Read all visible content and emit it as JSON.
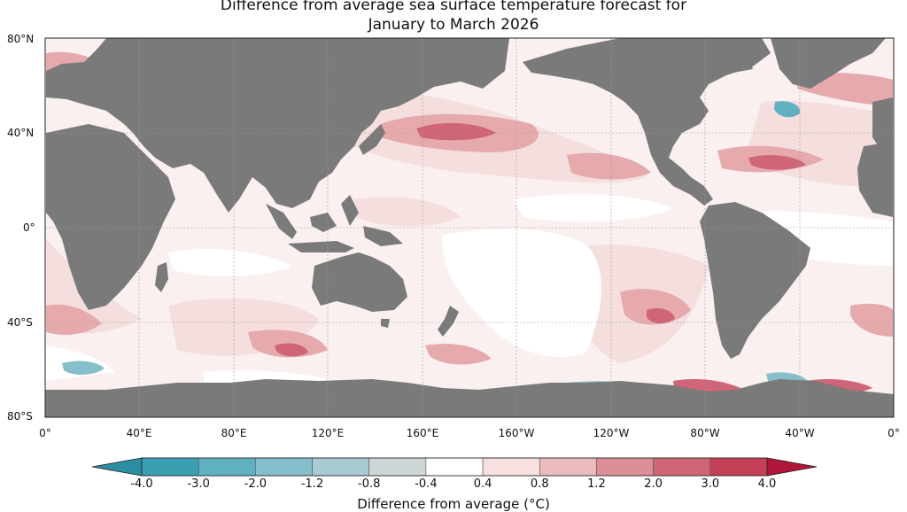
{
  "title": {
    "line1": "Difference from average sea surface temperature forecast for",
    "line2": "January to March 2026"
  },
  "map": {
    "latitude_labels": [
      "80°N",
      "40°N",
      "0°",
      "40°S",
      "80°S"
    ],
    "longitude_labels": [
      "0°",
      "40°E",
      "80°E",
      "120°E",
      "160°E",
      "160°W",
      "120°W",
      "80°W",
      "40°W",
      "0°"
    ],
    "land_color": "#7a7a7a",
    "gridlines": true
  },
  "colorbar": {
    "title": "Difference from average (°C)",
    "ticks": [
      "-4.0",
      "-3.0",
      "-2.0",
      "-1.2",
      "-0.8",
      "-0.4",
      "0.4",
      "0.8",
      "1.2",
      "2.0",
      "3.0",
      "4.0"
    ],
    "colors": [
      "#3b9fb2",
      "#5fb1c2",
      "#86bfcc",
      "#a9cbd3",
      "#cfd6d8",
      "#ffffff",
      "#f6e1e0",
      "#ebbcbc",
      "#dc8f96",
      "#cf6576",
      "#c23f55"
    ],
    "under_color": "#2b8ea3",
    "over_color": "#b0153a"
  }
}
